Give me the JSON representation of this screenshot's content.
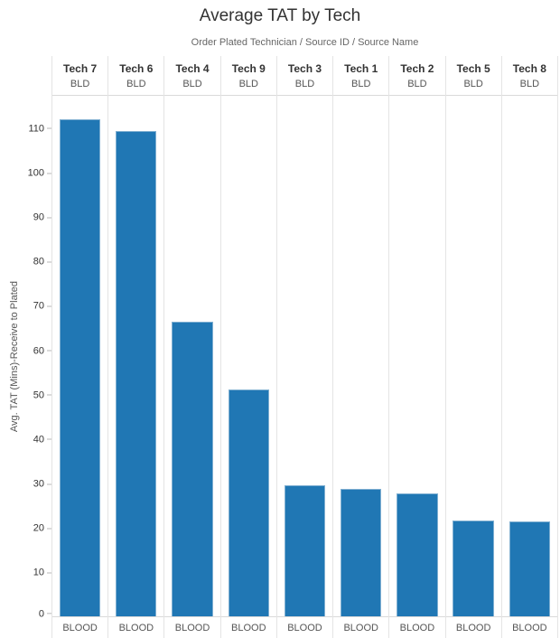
{
  "chart_data": {
    "type": "bar",
    "title": "Average TAT by Tech",
    "column_fields_label": "Order Plated Technician / Source ID / Source Name",
    "ylabel": "Avg. TAT (Mins)-Receive to Plated",
    "categories": [
      "Tech 7",
      "Tech 6",
      "Tech 4",
      "Tech 9",
      "Tech 3",
      "Tech 1",
      "Tech 2",
      "Tech 5",
      "Tech 8"
    ],
    "source_ids": [
      "BLD",
      "BLD",
      "BLD",
      "BLD",
      "BLD",
      "BLD",
      "BLD",
      "BLD",
      "BLD"
    ],
    "source_names": [
      "BLOOD",
      "BLOOD",
      "BLOOD",
      "BLOOD",
      "BLOOD",
      "BLOOD",
      "BLOOD",
      "BLOOD",
      "BLOOD"
    ],
    "values": [
      112,
      109.3,
      66.4,
      51.1,
      29.6,
      28.7,
      27.7,
      21.6,
      21.3
    ],
    "yticks": [
      0,
      10,
      20,
      30,
      40,
      50,
      60,
      70,
      80,
      90,
      100,
      110
    ],
    "ylim": [
      0,
      117.4
    ],
    "grid": "vertical pane dividers only, no horizontal gridlines",
    "legend": "none",
    "colors": {
      "bar_fill": "#2077b4",
      "bar_border": "#7fafd1",
      "divider": "#e4e4e4",
      "header_line": "#d9d9d9",
      "axis_line": "#d9d9d9",
      "tick_mark": "#b7b7b7",
      "tick_text": "#333333",
      "title_text": "#333333",
      "subtitle_text": "#666666",
      "header_text": "#333333",
      "secondary_text": "#555555"
    }
  }
}
